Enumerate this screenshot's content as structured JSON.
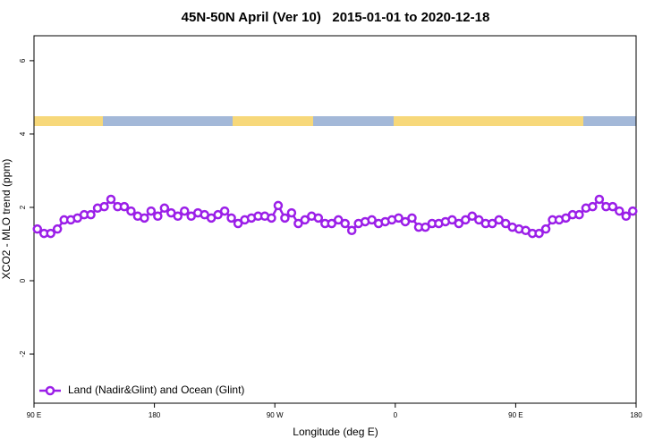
{
  "chart_data": {
    "type": "line",
    "title": "45N-50N April (Ver 10)   2015-01-01 to 2020-12-18",
    "x_label": "Longitude (deg E)",
    "y_label": "XCO2 - MLO trend (ppm)",
    "x": [
      92.5,
      97.5,
      102.5,
      107.5,
      112.5,
      117.5,
      122.5,
      127.5,
      132.5,
      137.5,
      142.5,
      147.5,
      152.5,
      157.5,
      162.5,
      167.5,
      172.5,
      177.5,
      182.5,
      187.5,
      192.5,
      197.5,
      202.5,
      207.5,
      212.5,
      217.5,
      222.5,
      227.5,
      232.5,
      237.5,
      242.5,
      247.5,
      252.5,
      257.5,
      262.5,
      267.5,
      272.5,
      277.5,
      282.5,
      287.5,
      292.5,
      297.5,
      302.5,
      307.5,
      312.5,
      317.5,
      322.5,
      327.5,
      332.5,
      337.5,
      342.5,
      347.5,
      352.5,
      357.5,
      362.5,
      367.5,
      372.5,
      377.5,
      382.5,
      387.5,
      392.5,
      397.5,
      402.5,
      407.5,
      412.5,
      417.5,
      422.5,
      427.5,
      432.5,
      437.5,
      442.5,
      447.5,
      452.5,
      457.5,
      462.5,
      467.5,
      472.5,
      477.5,
      482.5,
      487.5,
      492.5,
      497.5,
      502.5,
      507.5,
      512.5,
      517.5,
      522.5,
      527.5,
      532.5,
      537.5
    ],
    "series": [
      {
        "name": "Land (Nadir&Glint) and Ocean (Glint)",
        "color": "#9b1fe8",
        "values": [
          1.41,
          1.29,
          1.29,
          1.41,
          1.66,
          1.66,
          1.71,
          1.8,
          1.8,
          1.98,
          2.02,
          2.22,
          2.02,
          2.02,
          1.9,
          1.76,
          1.71,
          1.9,
          1.76,
          1.98,
          1.85,
          1.76,
          1.9,
          1.76,
          1.85,
          1.8,
          1.71,
          1.8,
          1.9,
          1.71,
          1.56,
          1.66,
          1.71,
          1.76,
          1.76,
          1.71,
          2.05,
          1.71,
          1.85,
          1.56,
          1.66,
          1.76,
          1.71,
          1.56,
          1.56,
          1.66,
          1.56,
          1.37,
          1.56,
          1.61,
          1.66,
          1.56,
          1.61,
          1.66,
          1.71,
          1.61,
          1.71,
          1.46,
          1.46,
          1.56,
          1.56,
          1.61,
          1.66,
          1.56,
          1.66,
          1.76,
          1.66,
          1.56,
          1.56,
          1.66,
          1.56,
          1.46,
          1.41,
          1.37,
          1.29,
          1.29,
          1.41,
          1.66,
          1.66,
          1.71,
          1.8,
          1.8,
          1.98,
          2.02,
          2.22,
          2.02,
          2.02,
          1.9,
          1.76,
          1.9
        ]
      }
    ],
    "xlim": [
      90,
      540
    ],
    "xticks": [
      {
        "value": 90,
        "label": "90 E"
      },
      180,
      {
        "value": 270,
        "label": "90 W"
      },
      {
        "value": 360,
        "label": "0"
      },
      {
        "value": 450,
        "label": "90 E"
      },
      {
        "value": 540,
        "label": "180"
      }
    ],
    "ylim": [
      -3.34,
      6.68
    ],
    "yticks": [
      -2,
      0,
      2,
      4,
      6
    ],
    "grid": false,
    "legend": "bottom-left"
  }
}
